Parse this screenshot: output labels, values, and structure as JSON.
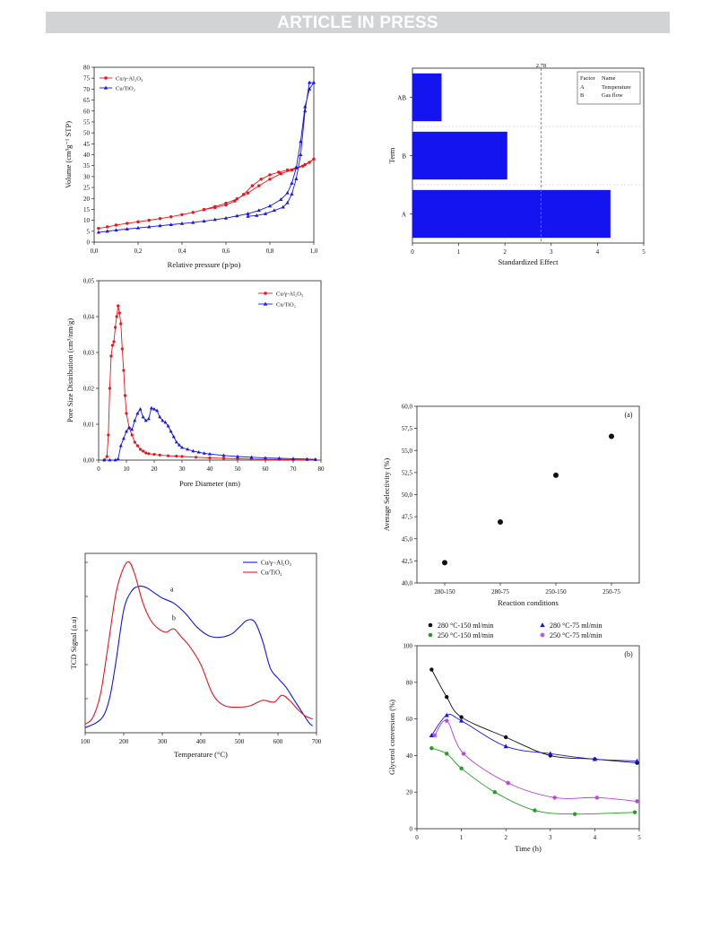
{
  "header": {
    "banner": "ARTICLE IN PRESS"
  },
  "colors": {
    "red": "#e8161d",
    "blue": "#1414f0",
    "black": "#111111",
    "green": "#1fa01f",
    "purple": "#b63ed6",
    "banner": "#d2d3d5",
    "refline": "#ee5555"
  },
  "chart_data": [
    {
      "id": "isotherm",
      "type": "line",
      "xlabel": "Relative pressure (p/po)",
      "ylabel": "Volume (cm³g⁻¹ STP)",
      "xlim": [
        0,
        1
      ],
      "ylim": [
        0,
        80
      ],
      "xticks": [
        0,
        0.2,
        0.4,
        0.6,
        0.8,
        1.0
      ],
      "xtick_labels": [
        "0,0",
        "0,2",
        "0,4",
        "0,6",
        "0,8",
        "1,0"
      ],
      "yticks": [
        0,
        5,
        10,
        15,
        20,
        25,
        30,
        35,
        40,
        45,
        50,
        55,
        60,
        65,
        70,
        75,
        80
      ],
      "ytick_labels": [
        "0",
        "5",
        "10",
        "15",
        "20",
        "25",
        "30",
        "35",
        "40",
        "45",
        "50",
        "55",
        "60",
        "65",
        "70",
        "75",
        "80"
      ],
      "legend_position": "top-left",
      "series": [
        {
          "name": "Cu/γ-Al₂O₃",
          "color": "red",
          "marker": "circle",
          "x": [
            0.02,
            0.06,
            0.1,
            0.15,
            0.2,
            0.25,
            0.3,
            0.35,
            0.4,
            0.45,
            0.5,
            0.55,
            0.6,
            0.65,
            0.7,
            0.75,
            0.8,
            0.85,
            0.9,
            0.95,
            0.98,
            1.0,
            0.96,
            0.92,
            0.88,
            0.84,
            0.8,
            0.76,
            0.72,
            0.68,
            0.64,
            0.6,
            0.55,
            0.5
          ],
          "y": [
            6.3,
            7.0,
            7.8,
            8.6,
            9.3,
            10.0,
            10.8,
            11.6,
            12.6,
            13.6,
            14.9,
            16.3,
            17.8,
            19.8,
            22.5,
            25.8,
            28.8,
            31.3,
            33.0,
            34.8,
            36.5,
            38.0,
            35.5,
            34.0,
            33.0,
            32.0,
            30.8,
            28.8,
            25.8,
            21.8,
            18.8,
            17.0,
            15.8,
            14.9
          ]
        },
        {
          "name": "Cu/TiO₂",
          "color": "blue",
          "marker": "triangle",
          "x": [
            0.02,
            0.06,
            0.1,
            0.15,
            0.2,
            0.25,
            0.3,
            0.35,
            0.4,
            0.45,
            0.5,
            0.55,
            0.6,
            0.65,
            0.7,
            0.75,
            0.8,
            0.85,
            0.88,
            0.9,
            0.92,
            0.94,
            0.96,
            0.98,
            1.0,
            0.98,
            0.96,
            0.94,
            0.92,
            0.9,
            0.88,
            0.86,
            0.82,
            0.78,
            0.74,
            0.7
          ],
          "y": [
            4.5,
            5.0,
            5.5,
            6.0,
            6.5,
            7.0,
            7.5,
            8.0,
            8.5,
            9.0,
            9.6,
            10.3,
            11.0,
            12.0,
            13.0,
            14.5,
            16.5,
            19.5,
            22.5,
            27.0,
            34.0,
            46.0,
            62.0,
            70.0,
            73.0,
            73.0,
            60.0,
            40.0,
            29.0,
            22.0,
            18.0,
            16.0,
            14.5,
            13.0,
            12.2,
            11.8
          ]
        }
      ]
    },
    {
      "id": "psd",
      "type": "line",
      "xlabel": "Pore Diameter (nm)",
      "ylabel": "Pore Size Distribution (cm³/nm/g)",
      "xlim": [
        0,
        80
      ],
      "ylim": [
        0,
        0.05
      ],
      "xticks": [
        0,
        10,
        20,
        30,
        40,
        50,
        60,
        70,
        80
      ],
      "xtick_labels": [
        "0",
        "10",
        "20",
        "30",
        "40",
        "50",
        "60",
        "70",
        "80"
      ],
      "yticks": [
        0,
        0.01,
        0.02,
        0.03,
        0.04,
        0.05
      ],
      "ytick_labels": [
        "0,00",
        "0,01",
        "0,02",
        "0,03",
        "0,04",
        "0,05"
      ],
      "legend_position": "top-right",
      "series": [
        {
          "name": "Cu/γ-Al₂O₃",
          "color": "red",
          "marker": "circle",
          "x": [
            2,
            3,
            3.5,
            4,
            4.5,
            5,
            5.5,
            6,
            6.5,
            7,
            7.5,
            8,
            8.5,
            9,
            9.5,
            10,
            11,
            12,
            13,
            14,
            15,
            16,
            17,
            18,
            20,
            22,
            25,
            28,
            30,
            35,
            40,
            45,
            50,
            55,
            60,
            65,
            70,
            75,
            78
          ],
          "y": [
            0,
            0.001,
            0.007,
            0.02,
            0.029,
            0.032,
            0.033,
            0.037,
            0.04,
            0.043,
            0.041,
            0.038,
            0.031,
            0.025,
            0.018,
            0.013,
            0.009,
            0.007,
            0.005,
            0.004,
            0.003,
            0.0025,
            0.002,
            0.0018,
            0.0016,
            0.0014,
            0.0012,
            0.0011,
            0.001,
            0.0008,
            0.0006,
            0.0005,
            0.0004,
            0.0003,
            0.0002,
            0.0002,
            0.0001,
            0.0001,
            0.0001
          ]
        },
        {
          "name": "Cu/TiO₂",
          "color": "blue",
          "marker": "triangle",
          "x": [
            2,
            4,
            6,
            7,
            8,
            9,
            10,
            11,
            12,
            13,
            14,
            15,
            16,
            17,
            18,
            19,
            20,
            21,
            22,
            23,
            24,
            25,
            26,
            27,
            28,
            29,
            30,
            32,
            34,
            36,
            38,
            40,
            45,
            50,
            55,
            60,
            65,
            70,
            75,
            78
          ],
          "y": [
            0,
            0,
            0,
            0.0003,
            0.004,
            0.006,
            0.008,
            0.009,
            0.0085,
            0.011,
            0.013,
            0.0142,
            0.012,
            0.011,
            0.0115,
            0.0145,
            0.0142,
            0.0138,
            0.012,
            0.011,
            0.0105,
            0.0095,
            0.008,
            0.0065,
            0.005,
            0.0042,
            0.0035,
            0.003,
            0.0025,
            0.0022,
            0.0019,
            0.0017,
            0.0013,
            0.001,
            0.0008,
            0.0006,
            0.0005,
            0.0004,
            0.0003,
            0.0002
          ]
        }
      ]
    },
    {
      "id": "tpr",
      "type": "line",
      "xlabel": "Temperature (°C)",
      "ylabel": "TCD Signal (a.u)",
      "xlim": [
        100,
        700
      ],
      "ylim": [
        0,
        1
      ],
      "xticks": [
        100,
        200,
        300,
        400,
        500,
        600,
        700
      ],
      "xtick_labels": [
        "100",
        "200",
        "300",
        "400",
        "500",
        "600",
        "700"
      ],
      "legend_position": "top-right",
      "annotations": [
        "a",
        "b"
      ],
      "series": [
        {
          "name": "Cu/γ−Al₂O₃",
          "color": "blue",
          "marker": "none",
          "x": [
            100,
            130,
            150,
            165,
            180,
            200,
            220,
            240,
            260,
            280,
            300,
            330,
            360,
            390,
            420,
            450,
            480,
            500,
            520,
            540,
            560,
            580,
            600,
            620,
            640,
            660,
            680,
            690
          ],
          "y": [
            0.03,
            0.06,
            0.11,
            0.22,
            0.42,
            0.72,
            0.83,
            0.86,
            0.85,
            0.82,
            0.79,
            0.76,
            0.7,
            0.62,
            0.57,
            0.56,
            0.58,
            0.62,
            0.66,
            0.65,
            0.54,
            0.38,
            0.32,
            0.27,
            0.2,
            0.13,
            0.06,
            0.04
          ]
        },
        {
          "name": "Cu/TiO₂",
          "color": "red",
          "marker": "none",
          "x": [
            100,
            120,
            140,
            160,
            180,
            200,
            215,
            230,
            250,
            270,
            290,
            310,
            330,
            350,
            370,
            400,
            430,
            460,
            500,
            530,
            560,
            590,
            610,
            630,
            650,
            670,
            690
          ],
          "y": [
            0.05,
            0.09,
            0.23,
            0.52,
            0.82,
            0.97,
            1.0,
            0.92,
            0.76,
            0.66,
            0.61,
            0.59,
            0.61,
            0.56,
            0.51,
            0.4,
            0.23,
            0.16,
            0.15,
            0.16,
            0.19,
            0.18,
            0.22,
            0.19,
            0.14,
            0.1,
            0.08
          ]
        }
      ]
    },
    {
      "id": "pareto",
      "type": "bar",
      "orientation": "horizontal",
      "xlabel": "Standardized Effect",
      "ylabel": "Term",
      "xlim": [
        0,
        5
      ],
      "xticks": [
        0,
        1,
        2,
        3,
        4,
        5
      ],
      "xtick_labels": [
        "0",
        "1",
        "2",
        "3",
        "4",
        "5"
      ],
      "categories": [
        "AB",
        "B",
        "A"
      ],
      "values": [
        0.63,
        2.05,
        4.28
      ],
      "bar_color": "blue",
      "reference_line": {
        "value": 2.78,
        "label": "2.78"
      },
      "legend_position": "top-right",
      "factor_table": {
        "header": [
          "Factor",
          "Name"
        ],
        "rows": [
          [
            "A",
            "Temperature"
          ],
          [
            "B",
            "Gas flow"
          ]
        ]
      }
    },
    {
      "id": "selectivity",
      "type": "scatter",
      "panel_label": "(a)",
      "xlabel": "Reaction conditions",
      "ylabel": "Average Selectivity (%)",
      "categories": [
        "280-150",
        "280-75",
        "250-150",
        "250-75"
      ],
      "values": [
        42.3,
        46.9,
        52.2,
        56.6
      ],
      "ylim": [
        40,
        60
      ],
      "yticks": [
        40,
        42.5,
        45,
        47.5,
        50,
        52.5,
        55,
        57.5,
        60
      ],
      "ytick_labels": [
        "40,0",
        "42,5",
        "45,0",
        "47,5",
        "50,0",
        "52,5",
        "55,0",
        "57,5",
        "60,0"
      ],
      "marker_color": "black"
    },
    {
      "id": "conversion",
      "type": "scatter",
      "panel_label": "(b)",
      "xlabel": "Time (h)",
      "ylabel": "Glycerol conversion (%)",
      "xlim": [
        0,
        5
      ],
      "ylim": [
        0,
        100
      ],
      "xticks": [
        0,
        1,
        2,
        3,
        4,
        5
      ],
      "xtick_labels": [
        "0",
        "1",
        "2",
        "3",
        "4",
        "5"
      ],
      "yticks": [
        0,
        20,
        40,
        60,
        80,
        100
      ],
      "ytick_labels": [
        "0",
        "20",
        "40",
        "60",
        "80",
        "100"
      ],
      "legend_position": "top",
      "series": [
        {
          "name": "280 °C-150 ml/min",
          "color": "black",
          "marker": "circle",
          "x": [
            0.33,
            0.67,
            1.0,
            2.0,
            3.0,
            4.0,
            4.95
          ],
          "y": [
            87,
            72,
            61,
            50,
            40,
            38,
            36
          ]
        },
        {
          "name": "280 °C-75 ml/min",
          "color": "blue",
          "marker": "triangle",
          "x": [
            0.33,
            0.67,
            1.0,
            2.0,
            3.0,
            4.0,
            4.95
          ],
          "y": [
            51,
            62,
            59,
            45,
            41,
            38,
            37
          ]
        },
        {
          "name": "250 °C-150 ml/min",
          "color": "green",
          "marker": "circle",
          "x": [
            0.33,
            0.67,
            1.0,
            1.75,
            2.65,
            3.55,
            4.9
          ],
          "y": [
            44,
            41,
            33,
            20,
            10,
            8,
            9
          ]
        },
        {
          "name": "250 °C-75 ml/min",
          "color": "purple",
          "marker": "star",
          "x": [
            0.4,
            0.67,
            1.05,
            2.05,
            3.1,
            4.05,
            4.95
          ],
          "y": [
            51,
            59,
            41,
            25,
            17,
            17,
            15
          ]
        }
      ]
    }
  ]
}
